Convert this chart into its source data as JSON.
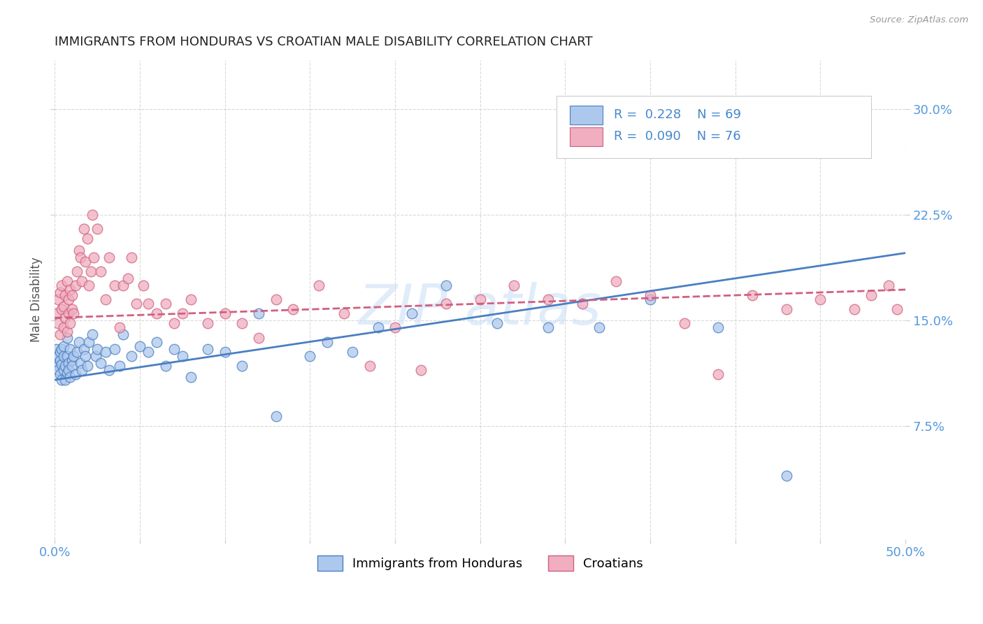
{
  "title": "IMMIGRANTS FROM HONDURAS VS CROATIAN MALE DISABILITY CORRELATION CHART",
  "source": "Source: ZipAtlas.com",
  "ylabel": "Male Disability",
  "xlim": [
    0.0,
    0.5
  ],
  "ylim": [
    -0.005,
    0.335
  ],
  "ytick_positions": [
    0.075,
    0.15,
    0.225,
    0.3
  ],
  "ytick_labels": [
    "7.5%",
    "15.0%",
    "22.5%",
    "30.0%"
  ],
  "series1_color": "#adc8ed",
  "series2_color": "#f0aec0",
  "line1_color": "#4a7fc1",
  "line2_color": "#d06080",
  "R1": 0.228,
  "N1": 69,
  "R2": 0.09,
  "N2": 76,
  "legend_label1": "Immigrants from Honduras",
  "legend_label2": "Croatians",
  "background_color": "#ffffff",
  "grid_color": "#d0d0d0",
  "series1_x": [
    0.001,
    0.001,
    0.002,
    0.002,
    0.002,
    0.003,
    0.003,
    0.003,
    0.004,
    0.004,
    0.004,
    0.005,
    0.005,
    0.005,
    0.006,
    0.006,
    0.007,
    0.007,
    0.007,
    0.008,
    0.008,
    0.009,
    0.009,
    0.01,
    0.01,
    0.011,
    0.012,
    0.013,
    0.014,
    0.015,
    0.016,
    0.017,
    0.018,
    0.019,
    0.02,
    0.022,
    0.024,
    0.025,
    0.027,
    0.03,
    0.032,
    0.035,
    0.038,
    0.04,
    0.045,
    0.05,
    0.055,
    0.06,
    0.065,
    0.07,
    0.075,
    0.08,
    0.09,
    0.1,
    0.11,
    0.12,
    0.13,
    0.15,
    0.16,
    0.175,
    0.19,
    0.21,
    0.23,
    0.26,
    0.29,
    0.32,
    0.35,
    0.39,
    0.43
  ],
  "series1_y": [
    0.12,
    0.13,
    0.118,
    0.125,
    0.115,
    0.122,
    0.112,
    0.128,
    0.108,
    0.13,
    0.119,
    0.125,
    0.115,
    0.132,
    0.118,
    0.108,
    0.125,
    0.113,
    0.138,
    0.12,
    0.115,
    0.13,
    0.11,
    0.122,
    0.118,
    0.125,
    0.112,
    0.128,
    0.135,
    0.12,
    0.115,
    0.13,
    0.125,
    0.118,
    0.135,
    0.14,
    0.125,
    0.13,
    0.12,
    0.128,
    0.115,
    0.13,
    0.118,
    0.14,
    0.125,
    0.132,
    0.128,
    0.135,
    0.118,
    0.13,
    0.125,
    0.11,
    0.13,
    0.128,
    0.118,
    0.155,
    0.082,
    0.125,
    0.135,
    0.128,
    0.145,
    0.155,
    0.175,
    0.148,
    0.145,
    0.145,
    0.165,
    0.145,
    0.04
  ],
  "series2_x": [
    0.001,
    0.002,
    0.002,
    0.003,
    0.003,
    0.004,
    0.004,
    0.005,
    0.005,
    0.006,
    0.006,
    0.007,
    0.007,
    0.008,
    0.008,
    0.009,
    0.009,
    0.01,
    0.01,
    0.011,
    0.012,
    0.013,
    0.014,
    0.015,
    0.016,
    0.017,
    0.018,
    0.019,
    0.02,
    0.021,
    0.022,
    0.023,
    0.025,
    0.027,
    0.03,
    0.032,
    0.035,
    0.038,
    0.04,
    0.043,
    0.045,
    0.048,
    0.052,
    0.055,
    0.06,
    0.065,
    0.07,
    0.075,
    0.08,
    0.09,
    0.1,
    0.11,
    0.12,
    0.13,
    0.14,
    0.155,
    0.17,
    0.185,
    0.2,
    0.215,
    0.23,
    0.25,
    0.27,
    0.29,
    0.31,
    0.33,
    0.35,
    0.37,
    0.39,
    0.41,
    0.43,
    0.45,
    0.47,
    0.48,
    0.49,
    0.495
  ],
  "series2_y": [
    0.155,
    0.148,
    0.165,
    0.14,
    0.17,
    0.158,
    0.175,
    0.145,
    0.16,
    0.152,
    0.168,
    0.142,
    0.178,
    0.155,
    0.165,
    0.172,
    0.148,
    0.158,
    0.168,
    0.155,
    0.175,
    0.185,
    0.2,
    0.195,
    0.178,
    0.215,
    0.192,
    0.208,
    0.175,
    0.185,
    0.225,
    0.195,
    0.215,
    0.185,
    0.165,
    0.195,
    0.175,
    0.145,
    0.175,
    0.18,
    0.195,
    0.162,
    0.175,
    0.162,
    0.155,
    0.162,
    0.148,
    0.155,
    0.165,
    0.148,
    0.155,
    0.148,
    0.138,
    0.165,
    0.158,
    0.175,
    0.155,
    0.118,
    0.145,
    0.115,
    0.162,
    0.165,
    0.175,
    0.165,
    0.162,
    0.178,
    0.168,
    0.148,
    0.112,
    0.168,
    0.158,
    0.165,
    0.158,
    0.168,
    0.175,
    0.158
  ],
  "line1_start_y": 0.108,
  "line1_end_y": 0.198,
  "line2_start_y": 0.152,
  "line2_end_y": 0.172
}
